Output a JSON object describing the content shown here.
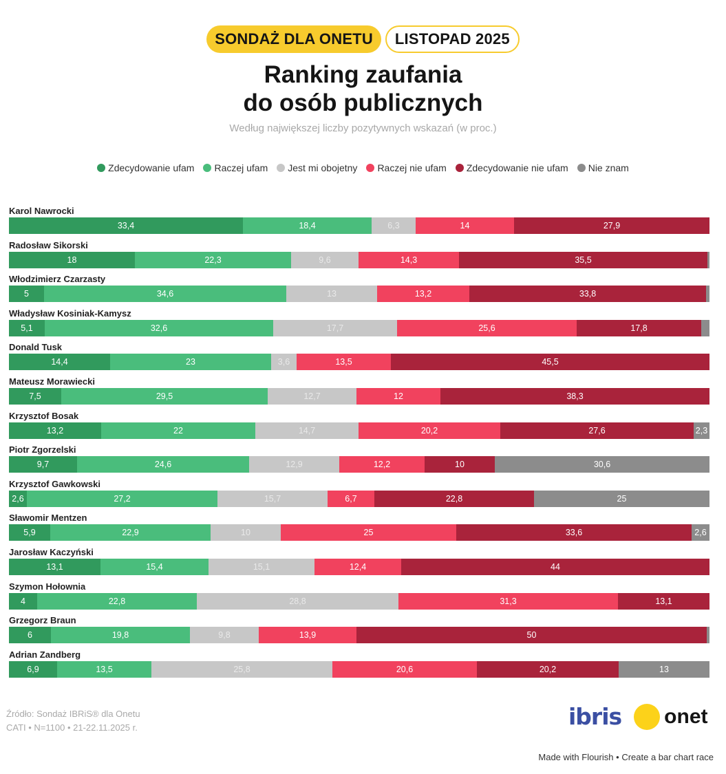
{
  "header": {
    "tag_main": "SONDAŻ DLA ONETU",
    "tag_date": "LISTOPAD 2025",
    "title_line1": "Ranking zaufania",
    "title_line2": "do osób publicznych",
    "subtitle": "Według największej liczby pozytywnych wskazań (w proc.)"
  },
  "legend": [
    {
      "label": "Zdecydowanie ufam",
      "color": "#319a5d"
    },
    {
      "label": "Raczej ufam",
      "color": "#4abd7c"
    },
    {
      "label": "Jest mi obojetny",
      "color": "#c7c7c7"
    },
    {
      "label": "Raczej nie ufam",
      "color": "#f1425e"
    },
    {
      "label": "Zdecydowanie nie ufam",
      "color": "#a9233b"
    },
    {
      "label": "Nie znam",
      "color": "#8c8c8c"
    }
  ],
  "chart_data": {
    "type": "bar",
    "orientation": "horizontal-stacked",
    "unit": "%",
    "categories": [
      "Karol Nawrocki",
      "Radosław Sikorski",
      "Włodzimierz Czarzasty",
      "Władysław Kosiniak-Kamysz",
      "Donald Tusk",
      "Mateusz Morawiecki",
      "Krzysztof Bosak",
      "Piotr Zgorzelski",
      "Krzysztof Gawkowski",
      "Sławomir Mentzen",
      "Jarosław Kaczyński",
      "Szymon Hołownia",
      "Grzegorz Braun",
      "Adrian Zandberg"
    ],
    "series": [
      {
        "name": "Zdecydowanie ufam",
        "color": "#319a5d",
        "values": [
          33.4,
          18,
          5,
          5.1,
          14.4,
          7.5,
          13.2,
          9.7,
          2.6,
          5.9,
          13.1,
          4,
          6,
          6.9
        ]
      },
      {
        "name": "Raczej ufam",
        "color": "#4abd7c",
        "values": [
          18.4,
          22.3,
          34.6,
          32.6,
          23,
          29.5,
          22,
          24.6,
          27.2,
          22.9,
          15.4,
          22.8,
          19.8,
          13.5
        ]
      },
      {
        "name": "Jest mi obojetny",
        "color": "#c7c7c7",
        "values": [
          6.3,
          9.6,
          13,
          17.7,
          3.6,
          12.7,
          14.7,
          12.9,
          15.7,
          10,
          15.1,
          28.8,
          9.8,
          25.8
        ]
      },
      {
        "name": "Raczej nie ufam",
        "color": "#f1425e",
        "values": [
          14,
          14.3,
          13.2,
          25.6,
          13.5,
          12,
          20.2,
          12.2,
          6.7,
          25,
          12.4,
          31.3,
          13.9,
          20.6
        ]
      },
      {
        "name": "Zdecydowanie nie ufam",
        "color": "#a9233b",
        "values": [
          27.9,
          35.5,
          33.8,
          17.8,
          45.5,
          38.3,
          27.6,
          10,
          22.8,
          33.6,
          44,
          13.1,
          50,
          20.2
        ]
      },
      {
        "name": "Nie znam",
        "color": "#8c8c8c",
        "values": [
          0,
          0.3,
          0.4,
          1.2,
          0,
          0,
          2.3,
          30.6,
          25,
          2.6,
          0,
          0,
          0.5,
          13
        ]
      }
    ]
  },
  "source": {
    "line1": "Źródło: Sondaż IBRiS® dla Onetu",
    "line2": "CATI • N=1100 • 21-22.11.2025 r."
  },
  "logos": {
    "ibris": "ibris",
    "onet": "onet"
  },
  "footer": {
    "made_with": "Made with Flourish",
    "separator": "•",
    "cta": "Create a bar chart race"
  }
}
